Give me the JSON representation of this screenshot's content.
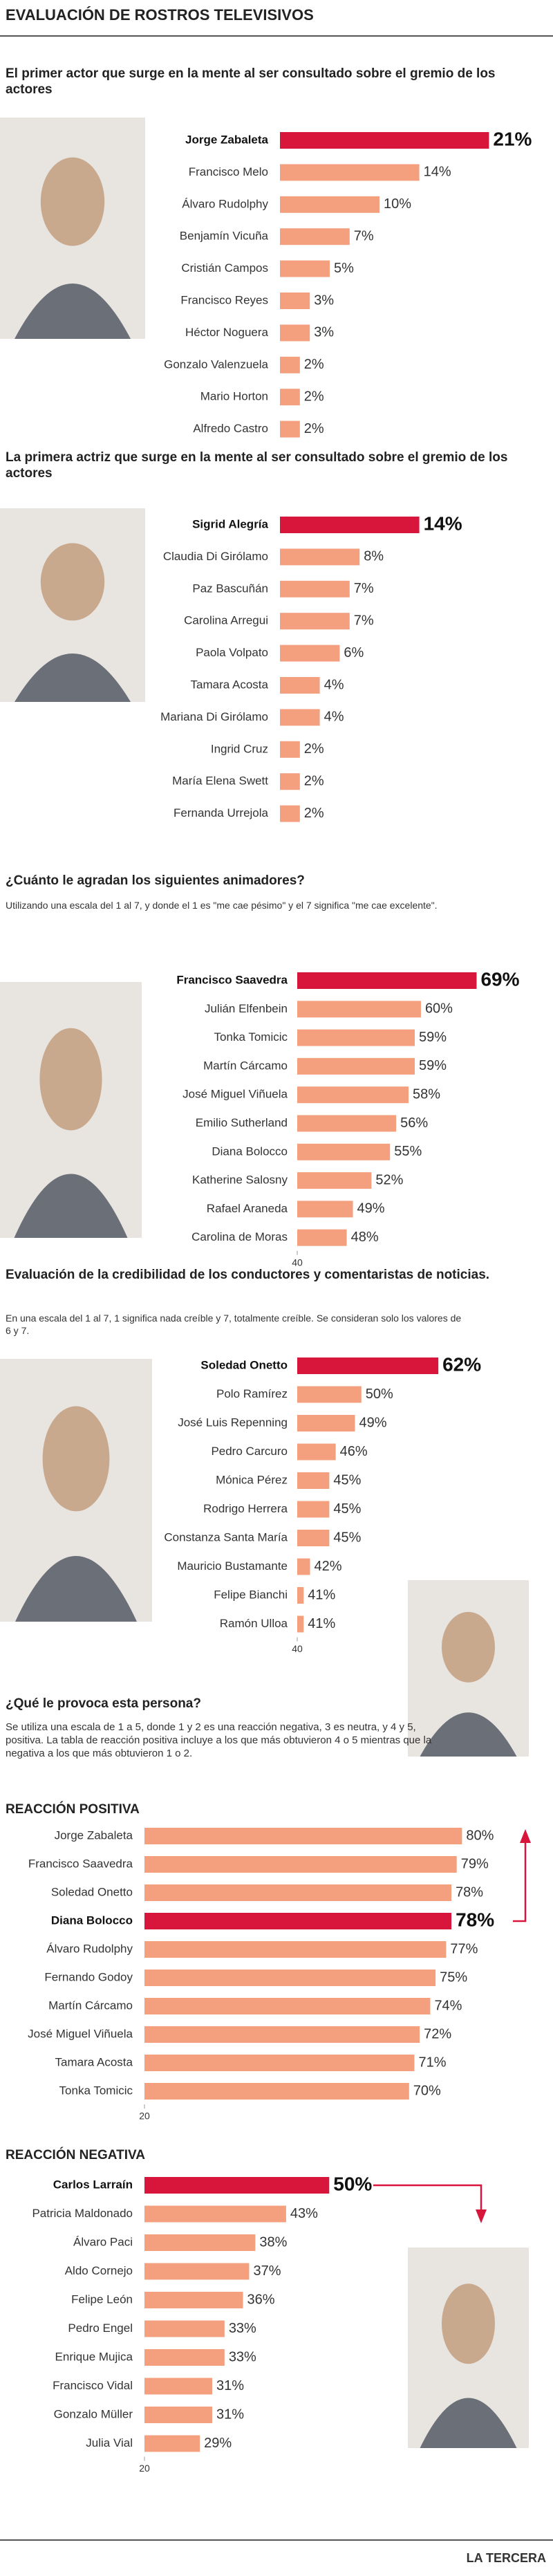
{
  "header": {
    "title": "EVALUACIÓN DE ROSTROS TELEVISIVOS"
  },
  "chart_data": [
    {
      "type": "bar",
      "title": "El primer actor que surge en la mente al ser consultado sobre el gremio de los actores",
      "categories": [
        "Jorge Zabaleta",
        "Francisco Melo",
        "Álvaro Rudolphy",
        "Benjamín Vicuña",
        "Cristián Campos",
        "Francisco Reyes",
        "Héctor Noguera",
        "Gonzalo Valenzuela",
        "Mario Horton",
        "Alfredo Castro"
      ],
      "values": [
        21,
        14,
        10,
        7,
        5,
        3,
        3,
        2,
        2,
        2
      ],
      "value_labels": [
        "21%",
        "14%",
        "10%",
        "7%",
        "5%",
        "3%",
        "3%",
        "2%",
        "2%",
        "2%"
      ],
      "color": "#f4a07e",
      "highlight": 0,
      "highlight_color": "#d8163c"
    },
    {
      "type": "bar",
      "title": "La primera actriz que surge en la mente al ser consultado sobre el gremio de los actores",
      "categories": [
        "Sigrid Alegría",
        "Claudia Di Girólamo",
        "Paz Bascuñán",
        "Carolina Arregui",
        "Paola Volpato",
        "Tamara Acosta",
        "Mariana Di Girólamo",
        "Ingrid Cruz",
        "María Elena Swett",
        "Fernanda Urrejola"
      ],
      "values": [
        14,
        8,
        7,
        7,
        6,
        4,
        4,
        2,
        2,
        2
      ],
      "value_labels": [
        "14%",
        "8%",
        "7%",
        "7%",
        "6%",
        "4%",
        "4%",
        "2%",
        "2%",
        "2%"
      ],
      "color": "#f4a07e",
      "highlight": 0,
      "highlight_color": "#d8163c"
    },
    {
      "type": "bar",
      "title": "¿Cuánto le agradan los siguientes animadores?",
      "subtitle": "Utilizando una escala del 1 al 7, y donde el 1 es \"me cae pésimo\" y el 7 significa \"me cae excelente\".",
      "categories": [
        "Francisco Saavedra",
        "Julián Elfenbein",
        "Tonka Tomicic",
        "Martín Cárcamo",
        "José Miguel Viñuela",
        "Emilio Sutherland",
        "Diana Bolocco",
        "Katherine Salosny",
        "Rafael Araneda",
        "Carolina de Moras"
      ],
      "values": [
        69,
        60,
        59,
        59,
        58,
        56,
        55,
        52,
        49,
        48
      ],
      "value_labels": [
        "69%",
        "60%",
        "59%",
        "59%",
        "58%",
        "56%",
        "55%",
        "52%",
        "49%",
        "48%"
      ],
      "color": "#f4a07e",
      "highlight": 0,
      "highlight_color": "#d8163c",
      "xlim": [
        40,
        78
      ],
      "xticks": [
        40
      ]
    },
    {
      "type": "bar",
      "title": "Evaluación de la credibilidad de los conductores y comentaristas de noticias.",
      "subtitle": "En una escala del 1 al 7, 1 significa nada creíble y 7, totalmente creíble. Se consideran solo los valores de 6 y 7.",
      "categories": [
        "Soledad Onetto",
        "Polo Ramírez",
        "José Luis Repenning",
        "Pedro Carcuro",
        "Mónica Pérez",
        "Rodrigo Herrera",
        "Constanza Santa María",
        "Mauricio Bustamante",
        "Felipe Bianchi",
        "Ramón Ulloa"
      ],
      "values": [
        62,
        50,
        49,
        46,
        45,
        45,
        45,
        42,
        41,
        41
      ],
      "value_labels": [
        "62%",
        "50%",
        "49%",
        "46%",
        "45%",
        "45%",
        "45%",
        "42%",
        "41%",
        "41%"
      ],
      "color": "#f4a07e",
      "highlight": 0,
      "highlight_color": "#d8163c",
      "xlim": [
        40,
        76
      ],
      "xticks": [
        40
      ]
    },
    {
      "type": "bar",
      "title": "REACCIÓN POSITIVA",
      "categories": [
        "Jorge Zabaleta",
        "Francisco Saavedra",
        "Soledad Onetto",
        "Diana Bolocco",
        "Álvaro Rudolphy",
        "Fernando Godoy",
        "Martín Cárcamo",
        "José Miguel Viñuela",
        "Tamara Acosta",
        "Tonka Tomicic"
      ],
      "values": [
        80,
        79,
        78,
        78,
        77,
        75,
        74,
        72,
        71,
        70
      ],
      "value_labels": [
        "80%",
        "79%",
        "78%",
        "78%",
        "77%",
        "75%",
        "74%",
        "72%",
        "71%",
        "70%"
      ],
      "color": "#f4a07e",
      "highlight": 3,
      "highlight_color": "#d8163c",
      "xlim": [
        20,
        84
      ],
      "xticks": [
        20
      ]
    },
    {
      "type": "bar",
      "title": "REACCIÓN NEGATIVA",
      "categories": [
        "Carlos Larraín",
        "Patricia Maldonado",
        "Álvaro Paci",
        "Aldo Cornejo",
        "Felipe León",
        "Pedro Engel",
        "Enrique Mujica",
        "Francisco Vidal",
        "Gonzalo Müller",
        "Julia Vial"
      ],
      "values": [
        50,
        43,
        38,
        37,
        36,
        33,
        33,
        31,
        31,
        29
      ],
      "value_labels": [
        "50%",
        "43%",
        "38%",
        "37%",
        "36%",
        "33%",
        "33%",
        "31%",
        "31%",
        "29%"
      ],
      "color": "#f4a07e",
      "highlight": 0,
      "highlight_color": "#d8163c",
      "xlim": [
        20,
        75
      ],
      "xticks": [
        20
      ]
    }
  ],
  "section": {
    "title": "¿Qué le provoca esta persona?",
    "text": "Se utiliza una escala de 1 a 5, donde 1 y 2 es una reacción negativa, 3 es neutra, y 4 y 5, positiva. La tabla de reacción positiva incluye a los que más obtuvieron 4 o 5 mientras que la negativa a los que más obtuvieron 1 o 2."
  },
  "footer": {
    "source": "LA TERCERA"
  }
}
